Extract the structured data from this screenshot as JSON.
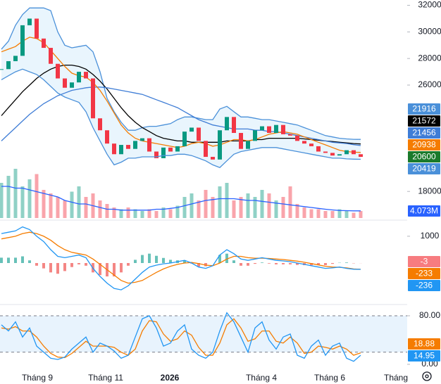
{
  "chart_data": [
    {
      "type": "candlestick",
      "ylim": [
        16000,
        32400
      ],
      "yticks": [
        18000,
        26000,
        28000,
        30000,
        32000
      ],
      "up_color": "#089981",
      "down_color": "#f23645",
      "band_fill": "#e3f2fd",
      "series": [
        {
          "kind": "line",
          "color": "#4a90d9",
          "values": [
            28700,
            29300,
            30500,
            31300,
            31800,
            31800,
            31800,
            31600,
            30000,
            29000,
            28800,
            28900,
            29000,
            28500,
            27000,
            25000,
            24000,
            23200,
            22600,
            22600,
            22800,
            22900,
            22900,
            23000,
            23100,
            23400,
            23600,
            23600,
            23500,
            23400,
            23400,
            24200,
            24400,
            24000,
            23600,
            23600,
            23500,
            23400,
            23400,
            23300,
            23200,
            23100,
            23000,
            22800,
            22600,
            22400,
            22200,
            22100,
            22000,
            21950,
            21920,
            21916
          ]
        },
        {
          "kind": "line",
          "color": "#000000",
          "values": [
            23700,
            24300,
            24900,
            25500,
            26000,
            26500,
            26900,
            27200,
            27400,
            27500,
            27500,
            27400,
            27200,
            26800,
            26300,
            25700,
            25000,
            24300,
            23700,
            23200,
            22800,
            22500,
            22200,
            22000,
            21900,
            21800,
            21800,
            21700,
            21700,
            21700,
            21700,
            21700,
            21800,
            21800,
            21800,
            21800,
            21900,
            21900,
            22000,
            22000,
            22000,
            22000,
            22000,
            21950,
            21900,
            21850,
            21800,
            21750,
            21700,
            21650,
            21600,
            21572
          ]
        },
        {
          "kind": "line",
          "color": "#3f7dd6",
          "values": [
            21800,
            22300,
            22800,
            23300,
            23800,
            24200,
            24600,
            24900,
            25200,
            25400,
            25600,
            25700,
            25800,
            25850,
            25850,
            25800,
            25700,
            25600,
            25500,
            25400,
            25300,
            25100,
            24900,
            24700,
            24500,
            24300,
            24000,
            23700,
            23400,
            23200,
            23000,
            22900,
            22800,
            22700,
            22700,
            22700,
            22600,
            22600,
            22500,
            22500,
            22400,
            22300,
            22200,
            22100,
            22000,
            21900,
            21800,
            21700,
            21650,
            21600,
            21520,
            21456
          ]
        },
        {
          "kind": "line",
          "color": "#f57c00",
          "values": [
            28500,
            28700,
            28900,
            29300,
            29600,
            29500,
            29200,
            28600,
            28000,
            27400,
            26900,
            26700,
            26600,
            26200,
            25600,
            24800,
            23900,
            23000,
            22400,
            22000,
            21800,
            21700,
            21600,
            21500,
            21400,
            21300,
            21400,
            21600,
            21700,
            21600,
            21400,
            21500,
            21700,
            21900,
            21900,
            21800,
            21900,
            22100,
            22300,
            22400,
            22500,
            22400,
            22300,
            22100,
            21900,
            21700,
            21500,
            21300,
            21100,
            21000,
            20950,
            20938
          ]
        },
        {
          "kind": "candle",
          "color": "#1b7a2b",
          "values": [
            27200,
            27800,
            28200,
            30500,
            31000,
            29500,
            28800,
            27600,
            26500,
            25800,
            26200,
            27000,
            26500,
            23500,
            22600,
            21600,
            20800,
            21500,
            21200,
            21800,
            22000,
            21000,
            20500,
            21300,
            21000,
            21400,
            22500,
            22800,
            21800,
            20600,
            20400,
            22600,
            23600,
            22400,
            21200,
            21800,
            22600,
            22900,
            22400,
            23000,
            22300,
            22200,
            21800,
            21600,
            21400,
            21000,
            20900,
            20700,
            20800,
            21100,
            20800,
            20600
          ]
        },
        {
          "kind": "line",
          "color": "#4a90d9",
          "values": [
            26400,
            26700,
            27000,
            27200,
            27000,
            26800,
            26400,
            25900,
            25400,
            25100,
            24900,
            24700,
            24000,
            22800,
            21800,
            20800,
            20000,
            20200,
            20500,
            20500,
            20600,
            20600,
            20600,
            20700,
            20700,
            20800,
            20800,
            20700,
            20500,
            20300,
            20000,
            19800,
            20300,
            20800,
            21000,
            21100,
            21200,
            21300,
            21300,
            21300,
            21200,
            21100,
            21000,
            20900,
            20800,
            20700,
            20600,
            20500,
            20500,
            20450,
            20430,
            20419
          ]
        }
      ],
      "volume": {
        "ylim": [
          0,
          32
        ],
        "values": [
          20,
          24,
          28,
          18,
          22,
          25,
          16,
          14,
          12,
          10,
          15,
          18,
          12,
          14,
          10,
          8,
          6,
          5,
          6,
          5,
          4,
          5,
          4,
          6,
          5,
          7,
          12,
          14,
          10,
          16,
          12,
          18,
          20,
          10,
          12,
          14,
          12,
          16,
          14,
          10,
          12,
          18,
          8,
          6,
          5,
          5,
          4,
          4,
          5,
          4,
          3,
          4
        ]
      },
      "volume_ma": {
        "color": "#2962ff",
        "values": [
          18,
          18,
          17,
          17,
          16,
          15,
          14,
          13,
          12,
          10,
          9,
          8,
          8,
          7,
          6,
          5,
          5,
          4.5,
          4.5,
          4.5,
          4.5,
          4.5,
          5,
          5,
          5.5,
          6,
          7,
          8,
          9,
          10,
          10.5,
          11,
          11,
          11,
          10.5,
          10,
          10,
          9.5,
          9,
          8.5,
          8,
          7.5,
          7,
          6.5,
          6,
          5.5,
          5,
          4.6,
          4.3,
          4.2,
          4.1,
          4.073
        ],
        "value_labels": [
          null,
          null,
          null,
          null,
          null,
          null,
          null,
          null,
          null,
          null,
          null,
          null,
          null,
          null,
          null,
          null,
          null,
          null,
          null,
          null,
          null,
          null,
          null,
          null,
          null,
          null,
          null,
          null,
          null,
          null,
          null,
          null,
          null,
          null,
          null,
          null,
          null,
          null,
          null,
          null,
          null,
          null,
          null,
          null,
          null,
          null,
          null,
          null,
          null,
          null,
          null,
          "4.073M"
        ]
      }
    },
    {
      "type": "macd",
      "ylim": [
        -1470,
        1470
      ],
      "yticks": [
        1000
      ],
      "up_color": "#26a69a",
      "down_color": "#ef5350",
      "series": [
        {
          "kind": "histogram",
          "color": "#f77c80",
          "values": [
            200,
            200,
            200,
            250,
            100,
            -100,
            -200,
            -350,
            -400,
            -300,
            -150,
            -50,
            -100,
            -350,
            -450,
            -500,
            -500,
            -350,
            -100,
            120,
            300,
            350,
            270,
            190,
            120,
            100,
            100,
            -20,
            -130,
            -120,
            0,
            300,
            350,
            100,
            -100,
            -100,
            -30,
            20,
            -20,
            -50,
            -50,
            -50,
            -70,
            -80,
            -80,
            -80,
            -80,
            -30,
            10,
            20,
            -10,
            -3
          ]
        },
        {
          "kind": "line",
          "color": "#f57c00",
          "values": [
            900,
            950,
            1000,
            1100,
            1150,
            1100,
            1000,
            850,
            650,
            500,
            400,
            350,
            300,
            150,
            -50,
            -250,
            -450,
            -650,
            -750,
            -720,
            -650,
            -500,
            -350,
            -220,
            -120,
            -50,
            0,
            20,
            -20,
            -80,
            -100,
            0,
            150,
            250,
            250,
            200,
            180,
            180,
            170,
            150,
            130,
            100,
            70,
            30,
            -20,
            -70,
            -120,
            -150,
            -160,
            -180,
            -220,
            -233
          ]
        },
        {
          "kind": "line",
          "color": "#2196f3",
          "values": [
            1100,
            1150,
            1200,
            1350,
            1250,
            1000,
            800,
            500,
            250,
            200,
            250,
            300,
            200,
            -200,
            -500,
            -750,
            -950,
            -1000,
            -850,
            -600,
            -350,
            -150,
            -80,
            -30,
            0,
            50,
            100,
            0,
            -150,
            -200,
            -100,
            300,
            500,
            350,
            150,
            100,
            150,
            200,
            150,
            100,
            80,
            50,
            0,
            -50,
            -100,
            -150,
            -200,
            -180,
            -150,
            -200,
            -230,
            -236
          ]
        }
      ]
    },
    {
      "type": "stochastic",
      "ylim": [
        -8.1,
        92.75
      ],
      "yticks": [
        {
          "value": 80,
          "label": "80.00"
        },
        {
          "value": 0,
          "label": "0.00"
        }
      ],
      "band": [
        20,
        80
      ],
      "band_fill": "#e8f3fd",
      "xlim": [
        -0.2,
        57.6
      ],
      "xticks": [
        {
          "value": 5.1,
          "label": "Tháng 9"
        },
        {
          "value": 14.8,
          "label": "Tháng 11"
        },
        {
          "value": 23.9,
          "label": "2026"
        },
        {
          "value": 36.9,
          "label": "Tháng 4"
        },
        {
          "value": 46.6,
          "label": "Tháng 6"
        },
        {
          "value": 56.0,
          "label": "Tháng"
        }
      ],
      "series": [
        {
          "kind": "line",
          "color": "#f57c00",
          "values": [
            60,
            58,
            62,
            55,
            55,
            45,
            30,
            18,
            12,
            11,
            18,
            28,
            38,
            30,
            30,
            30,
            28,
            20,
            15,
            25,
            55,
            72,
            70,
            50,
            38,
            42,
            55,
            48,
            28,
            15,
            15,
            35,
            65,
            75,
            60,
            38,
            42,
            55,
            55,
            38,
            35,
            45,
            35,
            18,
            20,
            30,
            28,
            25,
            30,
            25,
            15,
            18.88
          ]
        },
        {
          "kind": "line",
          "color": "#2196f3",
          "values": [
            65,
            55,
            70,
            45,
            60,
            30,
            20,
            10,
            8,
            12,
            25,
            35,
            45,
            20,
            35,
            30,
            22,
            10,
            15,
            45,
            75,
            80,
            60,
            30,
            35,
            55,
            65,
            25,
            15,
            10,
            20,
            55,
            85,
            70,
            45,
            20,
            60,
            70,
            40,
            25,
            45,
            50,
            15,
            10,
            30,
            40,
            15,
            30,
            35,
            10,
            5,
            14.95
          ]
        }
      ]
    }
  ]
}
